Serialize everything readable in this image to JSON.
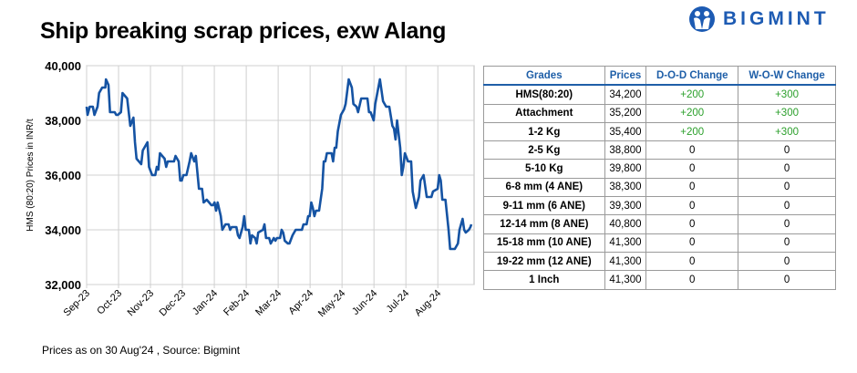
{
  "title": "Ship breaking scrap prices, exw Alang",
  "brand": "BIGMINT",
  "footnote": "Prices as on 30 Aug'24 , Source: Bigmint",
  "colors": {
    "line": "#1553a3",
    "brand": "#1d5bb3",
    "positive": "#2ca02c",
    "header": "#1f5fa8"
  },
  "table": {
    "headers": [
      "Grades",
      "Prices",
      "D-O-D Change",
      "W-O-W Change"
    ],
    "rows": [
      [
        "HMS(80:20)",
        "34,200",
        "+200",
        "+300"
      ],
      [
        "Attachment",
        "35,200",
        "+200",
        "+300"
      ],
      [
        "1-2 Kg",
        "35,400",
        "+200",
        "+300"
      ],
      [
        "2-5 Kg",
        "38,800",
        "0",
        "0"
      ],
      [
        "5-10 Kg",
        "39,800",
        "0",
        "0"
      ],
      [
        "6-8 mm (4 ANE)",
        "38,300",
        "0",
        "0"
      ],
      [
        "9-11 mm (6 ANE)",
        "39,300",
        "0",
        "0"
      ],
      [
        "12-14 mm (8 ANE)",
        "40,800",
        "0",
        "0"
      ],
      [
        "15-18 mm (10 ANE)",
        "41,300",
        "0",
        "0"
      ],
      [
        "19-22 mm (12 ANE)",
        "41,300",
        "0",
        "0"
      ],
      [
        "1 Inch",
        "41,300",
        "0",
        "0"
      ]
    ]
  },
  "chart_data": {
    "type": "line",
    "title": "Ship breaking scrap prices, exw Alang",
    "ylabel": "HMS (80:20) Prices in INR/t",
    "xlabel": "",
    "ylim": [
      32000,
      40000
    ],
    "yticks": [
      32000,
      34000,
      36000,
      38000,
      40000
    ],
    "ytick_labels": [
      "32,000",
      "34,000",
      "36,000",
      "38,000",
      "40,000"
    ],
    "xlim": [
      0,
      12.05
    ],
    "xtick_labels": [
      "Sep-23",
      "Oct-23",
      "Nov-23",
      "Dec-23",
      "Jan-24",
      "Feb-24",
      "Mar-24",
      "Apr-24",
      "May-24",
      "Jun-24",
      "Jul-24",
      "Aug-24"
    ],
    "grid": true,
    "x_unit": "months since Sep-23",
    "series": [
      {
        "name": "HMS (80:20)",
        "points": [
          [
            0,
            38500
          ],
          [
            0.03,
            38200
          ],
          [
            0.1,
            38500
          ],
          [
            0.2,
            38500
          ],
          [
            0.25,
            38200
          ],
          [
            0.35,
            38500
          ],
          [
            0.4,
            39000
          ],
          [
            0.5,
            39200
          ],
          [
            0.6,
            39200
          ],
          [
            0.62,
            39500
          ],
          [
            0.7,
            39300
          ],
          [
            0.75,
            38300
          ],
          [
            0.9,
            38300
          ],
          [
            0.95,
            38200
          ],
          [
            1.0,
            38200
          ],
          [
            1.1,
            38300
          ],
          [
            1.15,
            39000
          ],
          [
            1.3,
            38800
          ],
          [
            1.4,
            37800
          ],
          [
            1.5,
            38100
          ],
          [
            1.55,
            37200
          ],
          [
            1.6,
            36600
          ],
          [
            1.75,
            36400
          ],
          [
            1.8,
            36900
          ],
          [
            1.95,
            37200
          ],
          [
            2.0,
            36300
          ],
          [
            2.1,
            36000
          ],
          [
            2.2,
            36000
          ],
          [
            2.25,
            36300
          ],
          [
            2.3,
            36200
          ],
          [
            2.35,
            36800
          ],
          [
            2.5,
            36600
          ],
          [
            2.55,
            36300
          ],
          [
            2.6,
            36500
          ],
          [
            2.8,
            36500
          ],
          [
            2.85,
            36700
          ],
          [
            2.95,
            36500
          ],
          [
            3.0,
            35800
          ],
          [
            3.05,
            35800
          ],
          [
            3.1,
            36000
          ],
          [
            3.2,
            36000
          ],
          [
            3.3,
            36500
          ],
          [
            3.35,
            36800
          ],
          [
            3.45,
            36500
          ],
          [
            3.5,
            36700
          ],
          [
            3.6,
            35500
          ],
          [
            3.7,
            35500
          ],
          [
            3.75,
            35000
          ],
          [
            3.85,
            35100
          ],
          [
            4.0,
            34900
          ],
          [
            4.05,
            34900
          ],
          [
            4.1,
            35000
          ],
          [
            4.15,
            34700
          ],
          [
            4.2,
            35000
          ],
          [
            4.3,
            34500
          ],
          [
            4.35,
            34000
          ],
          [
            4.45,
            34200
          ],
          [
            4.55,
            34200
          ],
          [
            4.6,
            34000
          ],
          [
            4.65,
            34100
          ],
          [
            4.8,
            34100
          ],
          [
            4.85,
            33800
          ],
          [
            4.9,
            33700
          ],
          [
            5.0,
            34100
          ],
          [
            5.05,
            34500
          ],
          [
            5.1,
            34000
          ],
          [
            5.2,
            34000
          ],
          [
            5.25,
            33500
          ],
          [
            5.3,
            33800
          ],
          [
            5.4,
            33700
          ],
          [
            5.45,
            33500
          ],
          [
            5.5,
            33900
          ],
          [
            5.65,
            34000
          ],
          [
            5.7,
            34200
          ],
          [
            5.75,
            33700
          ],
          [
            5.85,
            33700
          ],
          [
            5.9,
            33500
          ],
          [
            6.0,
            33700
          ],
          [
            6.05,
            33600
          ],
          [
            6.1,
            33700
          ],
          [
            6.2,
            33700
          ],
          [
            6.25,
            34000
          ],
          [
            6.3,
            33900
          ],
          [
            6.35,
            33600
          ],
          [
            6.45,
            33500
          ],
          [
            6.5,
            33500
          ],
          [
            6.6,
            33800
          ],
          [
            6.7,
            34000
          ],
          [
            6.9,
            34000
          ],
          [
            6.95,
            34200
          ],
          [
            7.05,
            34200
          ],
          [
            7.1,
            34500
          ],
          [
            7.15,
            34500
          ],
          [
            7.2,
            35000
          ],
          [
            7.25,
            34800
          ],
          [
            7.3,
            34500
          ],
          [
            7.35,
            34700
          ],
          [
            7.45,
            34700
          ],
          [
            7.5,
            35100
          ],
          [
            7.55,
            35500
          ],
          [
            7.6,
            36500
          ],
          [
            7.65,
            36500
          ],
          [
            7.7,
            36800
          ],
          [
            7.85,
            36800
          ],
          [
            7.9,
            36500
          ],
          [
            7.95,
            37000
          ],
          [
            8.0,
            37000
          ],
          [
            8.05,
            37600
          ],
          [
            8.15,
            38200
          ],
          [
            8.25,
            38400
          ],
          [
            8.3,
            38600
          ],
          [
            8.4,
            39500
          ],
          [
            8.5,
            39200
          ],
          [
            8.55,
            38600
          ],
          [
            8.65,
            38500
          ],
          [
            8.7,
            38300
          ],
          [
            8.8,
            38800
          ],
          [
            9.0,
            38800
          ],
          [
            9.05,
            38300
          ],
          [
            9.1,
            38300
          ],
          [
            9.2,
            38000
          ],
          [
            9.25,
            38600
          ],
          [
            9.35,
            39200
          ],
          [
            9.4,
            39500
          ],
          [
            9.5,
            38700
          ],
          [
            9.6,
            38500
          ],
          [
            9.7,
            38500
          ],
          [
            9.8,
            37800
          ],
          [
            9.85,
            37700
          ],
          [
            9.9,
            37300
          ],
          [
            9.95,
            38000
          ],
          [
            10.05,
            37000
          ],
          [
            10.1,
            36000
          ],
          [
            10.15,
            36300
          ],
          [
            10.2,
            36800
          ],
          [
            10.3,
            36500
          ],
          [
            10.4,
            36500
          ],
          [
            10.45,
            35400
          ],
          [
            10.55,
            34800
          ],
          [
            10.6,
            35000
          ],
          [
            10.65,
            35200
          ],
          [
            10.7,
            35800
          ],
          [
            10.8,
            36000
          ],
          [
            10.9,
            35200
          ],
          [
            11.05,
            35200
          ],
          [
            11.1,
            35400
          ],
          [
            11.25,
            35500
          ],
          [
            11.3,
            36000
          ],
          [
            11.35,
            35800
          ],
          [
            11.4,
            35100
          ],
          [
            11.5,
            35100
          ],
          [
            11.6,
            34000
          ],
          [
            11.65,
            33300
          ],
          [
            11.8,
            33300
          ],
          [
            11.85,
            33400
          ],
          [
            11.9,
            33500
          ],
          [
            11.95,
            34000
          ],
          [
            12.05,
            34400
          ],
          [
            12.1,
            34000
          ],
          [
            12.15,
            33900
          ],
          [
            12.25,
            34000
          ],
          [
            12.3,
            34100
          ],
          [
            12.33,
            34200
          ]
        ]
      }
    ]
  }
}
